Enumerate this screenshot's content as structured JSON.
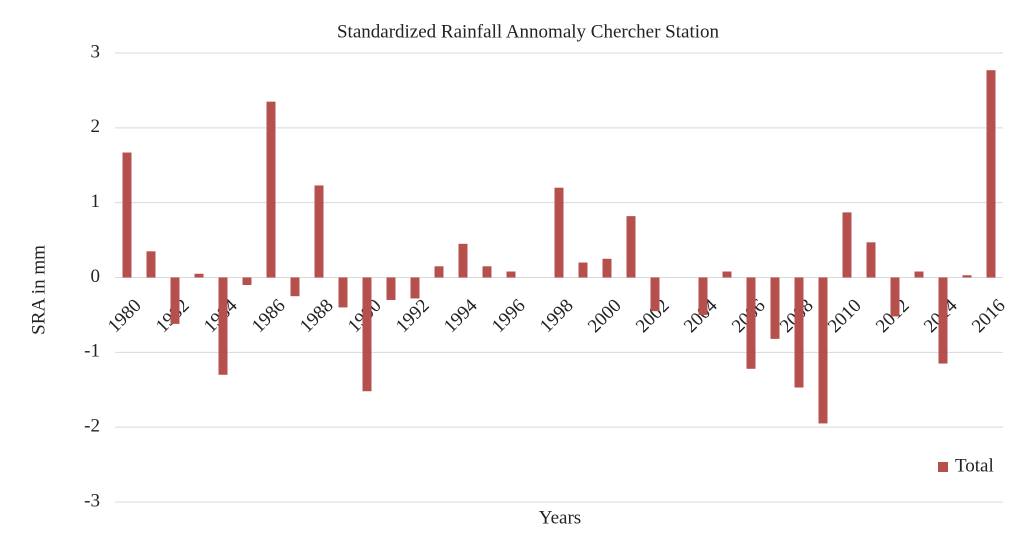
{
  "chart_data": {
    "type": "bar",
    "title": "Standardized Rainfall  Annomaly Chercher Station",
    "x_label": "Years",
    "y_label": "SRA in mm",
    "categories": [
      "1980",
      null,
      "1982",
      null,
      "1984",
      null,
      "1986",
      null,
      "1988",
      null,
      "1990",
      null,
      "1992",
      null,
      "1994",
      null,
      "1996",
      null,
      "1998",
      null,
      "2000",
      null,
      "2002",
      null,
      "2004",
      null,
      "2006",
      null,
      "2008",
      null,
      "2010",
      null,
      "2012",
      null,
      "2014",
      null,
      "2016"
    ],
    "series": [
      {
        "name": "Total",
        "color": "#b5504c",
        "values": [
          1.67,
          0.35,
          -0.62,
          0.05,
          -1.3,
          -0.1,
          2.35,
          -0.25,
          1.23,
          -0.4,
          -1.52,
          -0.3,
          -0.28,
          0.15,
          0.45,
          0.15,
          0.08,
          0,
          1.2,
          0.2,
          0.25,
          0.82,
          -0.45,
          0,
          -0.5,
          0.08,
          -1.22,
          -0.82,
          -1.47,
          -1.95,
          0.87,
          0.47,
          -0.52,
          0.08,
          -1.15,
          0.03,
          2.77
        ]
      }
    ],
    "ylim": [
      -3,
      3
    ],
    "yticks": [
      -3,
      -2,
      -1,
      0,
      1,
      2,
      3
    ],
    "grid": true,
    "legend": "lower right"
  }
}
